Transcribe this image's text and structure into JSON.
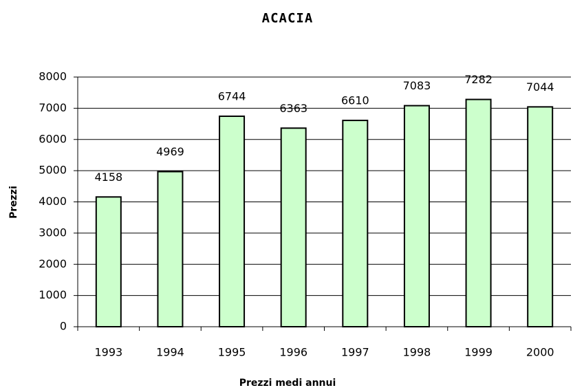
{
  "chart_data": {
    "type": "bar",
    "title": "ACACIA",
    "x_label": "Prezzi medi annui",
    "y_label": "Prezzi",
    "categories": [
      "1993",
      "1994",
      "1995",
      "1996",
      "1997",
      "1998",
      "1999",
      "2000"
    ],
    "values": [
      4158,
      4969,
      6744,
      6363,
      6610,
      7083,
      7282,
      7044
    ],
    "color": "#ccffcc",
    "ylim": [
      0,
      8000
    ],
    "yticks": [
      0,
      1000,
      2000,
      3000,
      4000,
      5000,
      6000,
      7000,
      8000
    ],
    "grid": true
  }
}
